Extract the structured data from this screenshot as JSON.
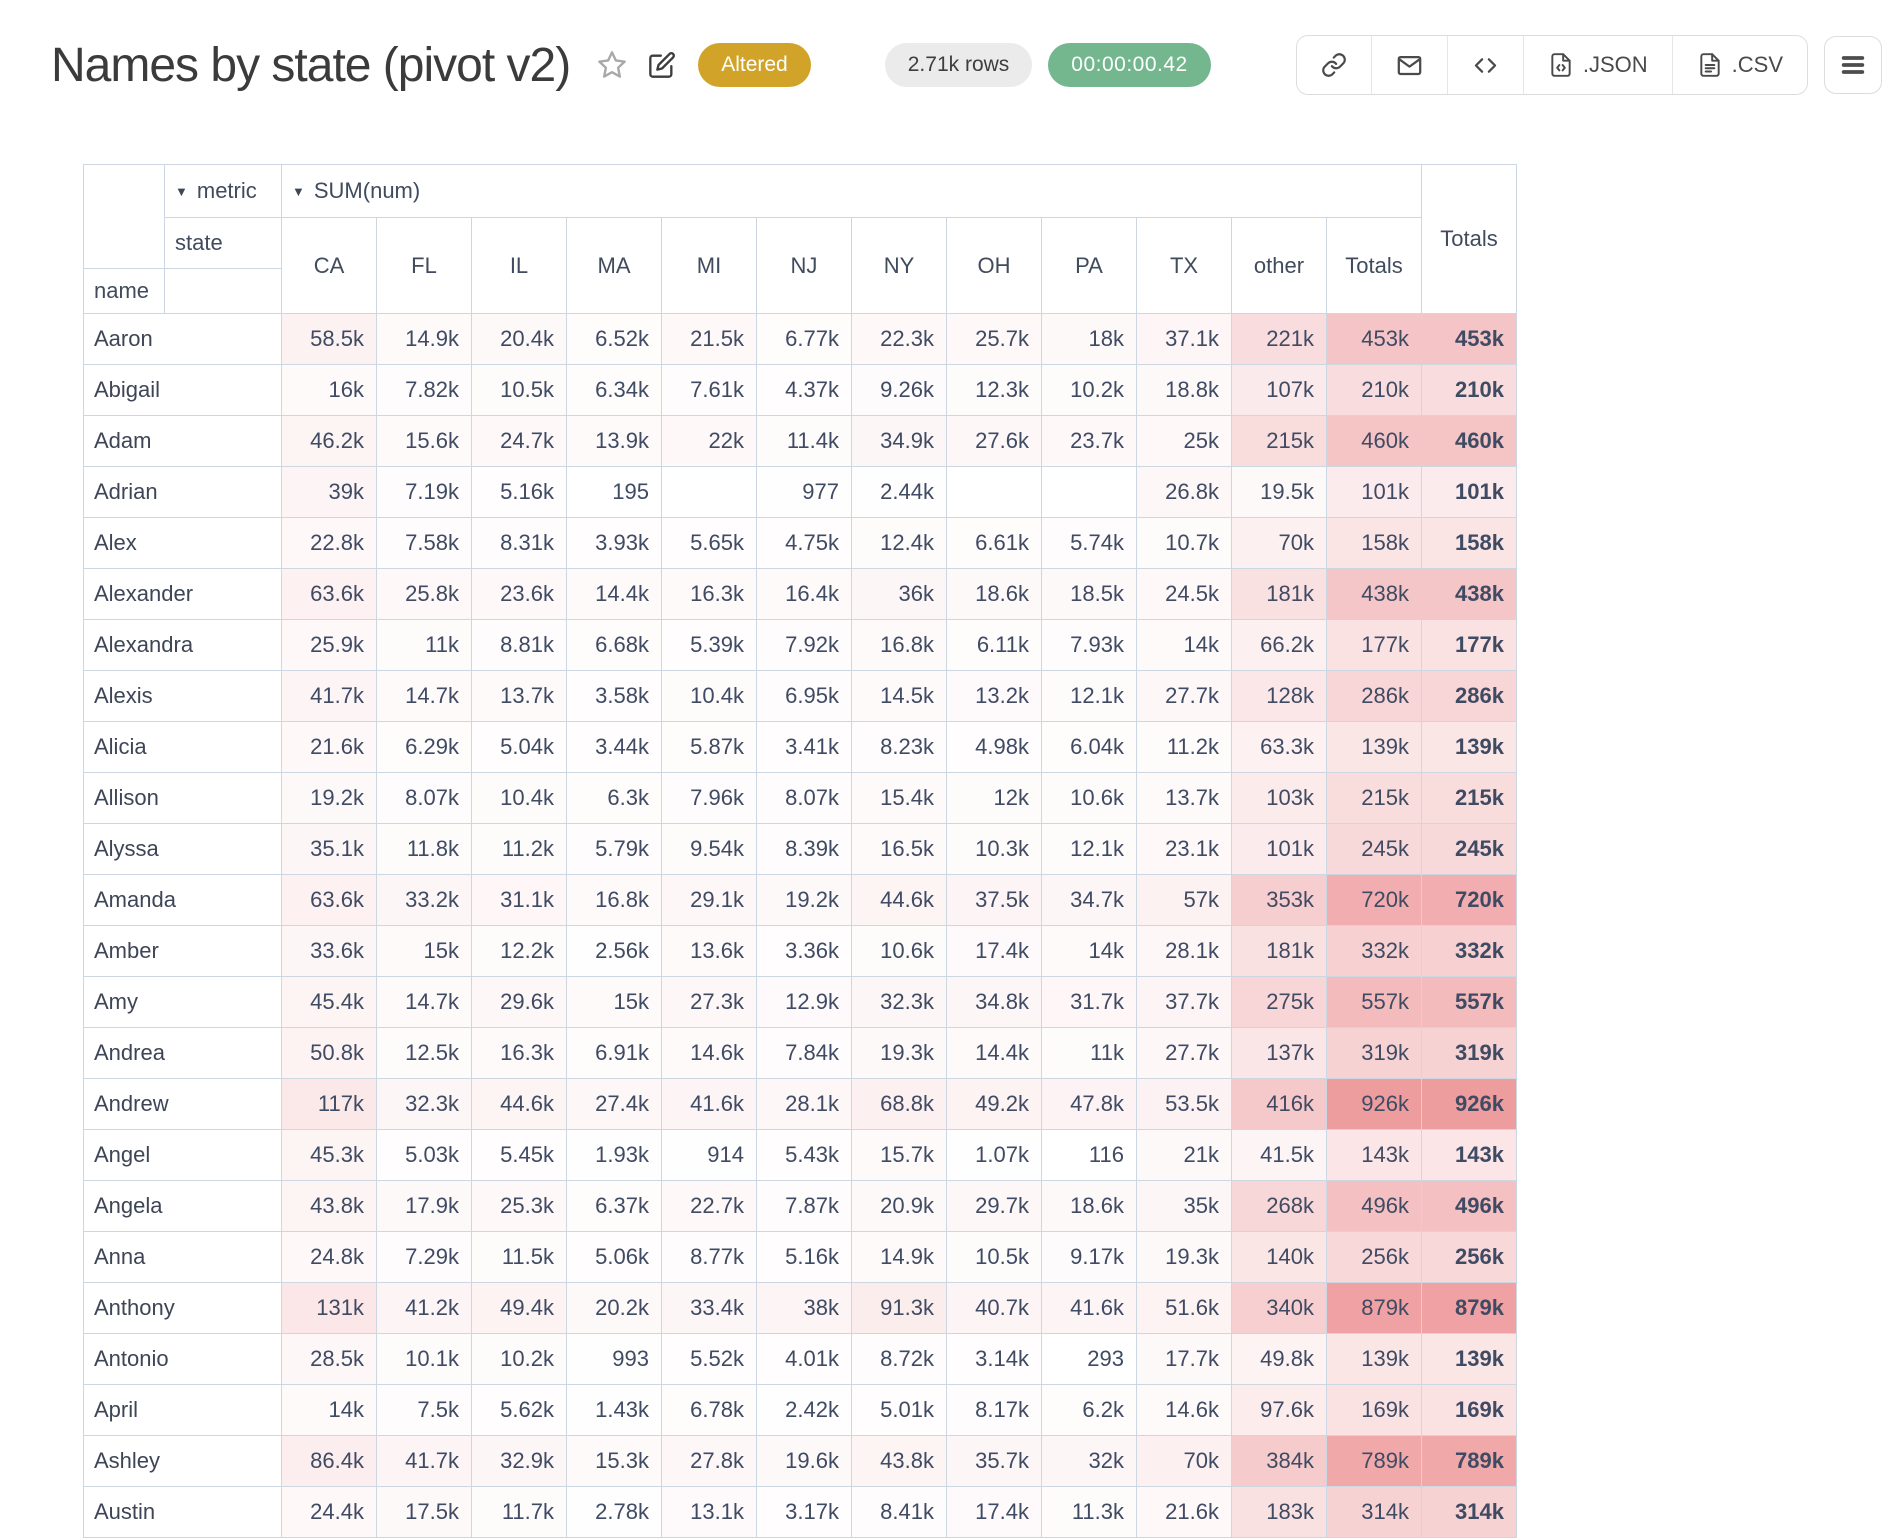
{
  "header": {
    "title": "Names by state (pivot v2)",
    "altered_badge": "Altered",
    "rows_badge": "2.71k rows",
    "duration_badge": "00:00:00.42",
    "toolbar": {
      "json_label": ".JSON",
      "csv_label": ".CSV"
    },
    "icons": [
      "star-icon",
      "edit-icon",
      "link-icon",
      "mail-icon",
      "embed-code-icon",
      "file-json-icon",
      "file-csv-icon",
      "menu-icon"
    ]
  },
  "colors": {
    "heat_base": "#ee9d9f",
    "border": "#ccd7e2",
    "altered_bg": "#d1a429",
    "duration_bg": "#74b78f",
    "rows_bg": "#ebebeb"
  },
  "pivot": {
    "metric_dropdown": "metric",
    "metric_value_dropdown": "SUM(num)",
    "col_dimension": "state",
    "row_dimension": "name",
    "columns": [
      "CA",
      "FL",
      "IL",
      "MA",
      "MI",
      "NJ",
      "NY",
      "OH",
      "PA",
      "TX",
      "other",
      "Totals"
    ],
    "grand_total_label": "Totals",
    "rows": [
      {
        "name": "Aaron",
        "cells": [
          "58.5k",
          "14.9k",
          "20.4k",
          "6.52k",
          "21.5k",
          "6.77k",
          "22.3k",
          "25.7k",
          "18k",
          "37.1k",
          "221k",
          "453k"
        ],
        "total": "453k"
      },
      {
        "name": "Abigail",
        "cells": [
          "16k",
          "7.82k",
          "10.5k",
          "6.34k",
          "7.61k",
          "4.37k",
          "9.26k",
          "12.3k",
          "10.2k",
          "18.8k",
          "107k",
          "210k"
        ],
        "total": "210k"
      },
      {
        "name": "Adam",
        "cells": [
          "46.2k",
          "15.6k",
          "24.7k",
          "13.9k",
          "22k",
          "11.4k",
          "34.9k",
          "27.6k",
          "23.7k",
          "25k",
          "215k",
          "460k"
        ],
        "total": "460k"
      },
      {
        "name": "Adrian",
        "cells": [
          "39k",
          "7.19k",
          "5.16k",
          "195",
          "",
          "977",
          "2.44k",
          "",
          "",
          "26.8k",
          "19.5k",
          "101k"
        ],
        "total": "101k"
      },
      {
        "name": "Alex",
        "cells": [
          "22.8k",
          "7.58k",
          "8.31k",
          "3.93k",
          "5.65k",
          "4.75k",
          "12.4k",
          "6.61k",
          "5.74k",
          "10.7k",
          "70k",
          "158k"
        ],
        "total": "158k"
      },
      {
        "name": "Alexander",
        "cells": [
          "63.6k",
          "25.8k",
          "23.6k",
          "14.4k",
          "16.3k",
          "16.4k",
          "36k",
          "18.6k",
          "18.5k",
          "24.5k",
          "181k",
          "438k"
        ],
        "total": "438k"
      },
      {
        "name": "Alexandra",
        "cells": [
          "25.9k",
          "11k",
          "8.81k",
          "6.68k",
          "5.39k",
          "7.92k",
          "16.8k",
          "6.11k",
          "7.93k",
          "14k",
          "66.2k",
          "177k"
        ],
        "total": "177k"
      },
      {
        "name": "Alexis",
        "cells": [
          "41.7k",
          "14.7k",
          "13.7k",
          "3.58k",
          "10.4k",
          "6.95k",
          "14.5k",
          "13.2k",
          "12.1k",
          "27.7k",
          "128k",
          "286k"
        ],
        "total": "286k"
      },
      {
        "name": "Alicia",
        "cells": [
          "21.6k",
          "6.29k",
          "5.04k",
          "3.44k",
          "5.87k",
          "3.41k",
          "8.23k",
          "4.98k",
          "6.04k",
          "11.2k",
          "63.3k",
          "139k"
        ],
        "total": "139k"
      },
      {
        "name": "Allison",
        "cells": [
          "19.2k",
          "8.07k",
          "10.4k",
          "6.3k",
          "7.96k",
          "8.07k",
          "15.4k",
          "12k",
          "10.6k",
          "13.7k",
          "103k",
          "215k"
        ],
        "total": "215k"
      },
      {
        "name": "Alyssa",
        "cells": [
          "35.1k",
          "11.8k",
          "11.2k",
          "5.79k",
          "9.54k",
          "8.39k",
          "16.5k",
          "10.3k",
          "12.1k",
          "23.1k",
          "101k",
          "245k"
        ],
        "total": "245k"
      },
      {
        "name": "Amanda",
        "cells": [
          "63.6k",
          "33.2k",
          "31.1k",
          "16.8k",
          "29.1k",
          "19.2k",
          "44.6k",
          "37.5k",
          "34.7k",
          "57k",
          "353k",
          "720k"
        ],
        "total": "720k"
      },
      {
        "name": "Amber",
        "cells": [
          "33.6k",
          "15k",
          "12.2k",
          "2.56k",
          "13.6k",
          "3.36k",
          "10.6k",
          "17.4k",
          "14k",
          "28.1k",
          "181k",
          "332k"
        ],
        "total": "332k"
      },
      {
        "name": "Amy",
        "cells": [
          "45.4k",
          "14.7k",
          "29.6k",
          "15k",
          "27.3k",
          "12.9k",
          "32.3k",
          "34.8k",
          "31.7k",
          "37.7k",
          "275k",
          "557k"
        ],
        "total": "557k"
      },
      {
        "name": "Andrea",
        "cells": [
          "50.8k",
          "12.5k",
          "16.3k",
          "6.91k",
          "14.6k",
          "7.84k",
          "19.3k",
          "14.4k",
          "11k",
          "27.7k",
          "137k",
          "319k"
        ],
        "total": "319k"
      },
      {
        "name": "Andrew",
        "cells": [
          "117k",
          "32.3k",
          "44.6k",
          "27.4k",
          "41.6k",
          "28.1k",
          "68.8k",
          "49.2k",
          "47.8k",
          "53.5k",
          "416k",
          "926k"
        ],
        "total": "926k"
      },
      {
        "name": "Angel",
        "cells": [
          "45.3k",
          "5.03k",
          "5.45k",
          "1.93k",
          "914",
          "5.43k",
          "15.7k",
          "1.07k",
          "116",
          "21k",
          "41.5k",
          "143k"
        ],
        "total": "143k"
      },
      {
        "name": "Angela",
        "cells": [
          "43.8k",
          "17.9k",
          "25.3k",
          "6.37k",
          "22.7k",
          "7.87k",
          "20.9k",
          "29.7k",
          "18.6k",
          "35k",
          "268k",
          "496k"
        ],
        "total": "496k"
      },
      {
        "name": "Anna",
        "cells": [
          "24.8k",
          "7.29k",
          "11.5k",
          "5.06k",
          "8.77k",
          "5.16k",
          "14.9k",
          "10.5k",
          "9.17k",
          "19.3k",
          "140k",
          "256k"
        ],
        "total": "256k"
      },
      {
        "name": "Anthony",
        "cells": [
          "131k",
          "41.2k",
          "49.4k",
          "20.2k",
          "33.4k",
          "38k",
          "91.3k",
          "40.7k",
          "41.6k",
          "51.6k",
          "340k",
          "879k"
        ],
        "total": "879k"
      },
      {
        "name": "Antonio",
        "cells": [
          "28.5k",
          "10.1k",
          "10.2k",
          "993",
          "5.52k",
          "4.01k",
          "8.72k",
          "3.14k",
          "293",
          "17.7k",
          "49.8k",
          "139k"
        ],
        "total": "139k"
      },
      {
        "name": "April",
        "cells": [
          "14k",
          "7.5k",
          "5.62k",
          "1.43k",
          "6.78k",
          "2.42k",
          "5.01k",
          "8.17k",
          "6.2k",
          "14.6k",
          "97.6k",
          "169k"
        ],
        "total": "169k"
      },
      {
        "name": "Ashley",
        "cells": [
          "86.4k",
          "41.7k",
          "32.9k",
          "15.3k",
          "27.8k",
          "19.6k",
          "43.8k",
          "35.7k",
          "32k",
          "70k",
          "384k",
          "789k"
        ],
        "total": "789k"
      },
      {
        "name": "Austin",
        "cells": [
          "24.4k",
          "17.5k",
          "11.7k",
          "2.78k",
          "13.1k",
          "3.17k",
          "8.41k",
          "17.4k",
          "11.3k",
          "21.6k",
          "183k",
          "314k"
        ],
        "total": "314k"
      }
    ]
  }
}
